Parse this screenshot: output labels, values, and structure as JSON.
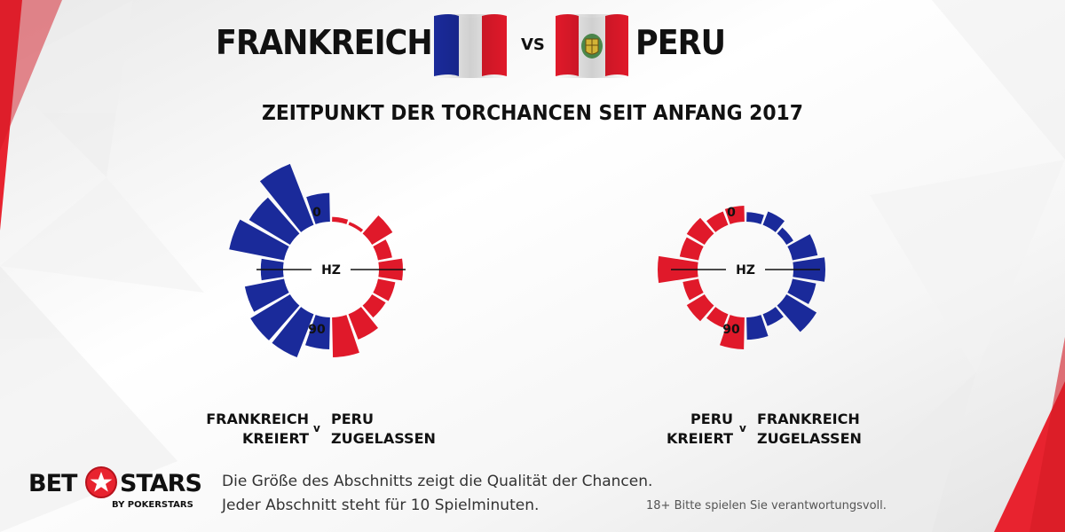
{
  "header": {
    "team_left": "FRANKREICH",
    "vs": "VS",
    "team_right": "PERU"
  },
  "chart_title": "ZEITPUNKT DER TORCHANCEN SEIT ANFANG 2017",
  "colors": {
    "blue": "#1a2a9a",
    "red": "#e0192a",
    "accent_red": "#e8232f"
  },
  "chart_data": [
    {
      "type": "radial-bar",
      "labels": {
        "top": "0",
        "center": "HZ",
        "bottom": "90"
      },
      "segment_minutes": 10,
      "left_series": {
        "name": "FRANKREICH KREIERT",
        "color": "#1a2a9a",
        "values": [
          36,
          82,
          60,
          70,
          28,
          50,
          58,
          58,
          40
        ]
      },
      "right_series": {
        "name": "PERU ZUGELASSEN",
        "color": "#e0192a",
        "values": [
          6,
          4,
          30,
          18,
          30,
          22,
          20,
          34,
          50
        ]
      }
    },
    {
      "type": "radial-bar",
      "labels": {
        "top": "0",
        "center": "HZ",
        "bottom": "90"
      },
      "segment_minutes": 10,
      "left_series": {
        "name": "PERU KREIERT",
        "color": "#e0192a",
        "values": [
          20,
          18,
          26,
          24,
          50,
          20,
          26,
          18,
          40
        ]
      },
      "right_series": {
        "name": "FRANKREICH ZUGELASSEN",
        "color": "#1a2a9a",
        "values": [
          12,
          18,
          10,
          32,
          40,
          30,
          44,
          16,
          28
        ]
      }
    }
  ],
  "legend": {
    "chart1": {
      "left_line1": "FRANKREICH",
      "left_line2": "KREIERT",
      "v": "v",
      "right_line1": "PERU",
      "right_line2": "ZUGELASSEN"
    },
    "chart2": {
      "left_line1": "PERU",
      "left_line2": "KREIERT",
      "v": "v",
      "right_line1": "FRANKREICH",
      "right_line2": "ZUGELASSEN"
    }
  },
  "footer": {
    "logo_bet": "BET",
    "logo_stars": "STARS",
    "logo_by": "BY POKERSTARS",
    "note_line1": "Die Größe des Abschnitts zeigt die Qualität der Chancen.",
    "note_line2": "Jeder Abschnitt steht für 10 Spielminuten.",
    "disclaimer": "18+ Bitte spielen Sie verantwortungsvoll."
  }
}
